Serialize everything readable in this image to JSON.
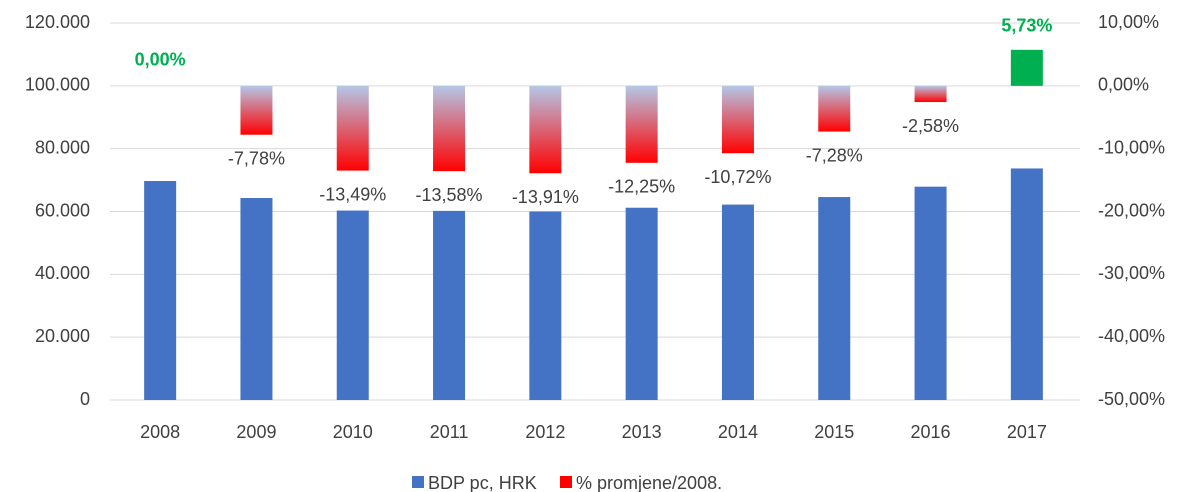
{
  "chart_data": {
    "type": "bar",
    "categories": [
      "2008",
      "2009",
      "2010",
      "2011",
      "2012",
      "2013",
      "2014",
      "2015",
      "2016",
      "2017"
    ],
    "series": [
      {
        "name": "BDP pc, HRK",
        "color": "#4472c4",
        "values": [
          69700,
          64300,
          60300,
          60200,
          60000,
          61200,
          62200,
          64600,
          67900,
          73700
        ]
      },
      {
        "name": "% promjene/2008.",
        "color": "#ff0000",
        "axis": "y2",
        "gradient_from": "#b4c7e7",
        "positive_color": "#00b050",
        "values": [
          0,
          -7.78,
          -13.49,
          -13.58,
          -13.91,
          -12.25,
          -10.72,
          -7.28,
          -2.58,
          5.73
        ],
        "value_labels": [
          "0,00%",
          "-7,78%",
          "-13,49%",
          "-13,58%",
          "-13,91%",
          "-12,25%",
          "-10,72%",
          "-7,28%",
          "-2,58%",
          "5,73%"
        ]
      }
    ],
    "ylim": [
      0,
      120000
    ],
    "yticks": [
      {
        "value": 0,
        "label": "0"
      },
      {
        "value": 20000,
        "label": "20.000"
      },
      {
        "value": 40000,
        "label": "40.000"
      },
      {
        "value": 60000,
        "label": "60.000"
      },
      {
        "value": 80000,
        "label": "80.000"
      },
      {
        "value": 100000,
        "label": "100.000"
      },
      {
        "value": 120000,
        "label": "120.000"
      }
    ],
    "y2lim": [
      -50,
      10
    ],
    "y2ticks": [
      {
        "value": -50,
        "label": "-50,00%"
      },
      {
        "value": -40,
        "label": "-40,00%"
      },
      {
        "value": -30,
        "label": "-30,00%"
      },
      {
        "value": -20,
        "label": "-20,00%"
      },
      {
        "value": -10,
        "label": "-10,00%"
      },
      {
        "value": 0,
        "label": "0,00%"
      },
      {
        "value": 10,
        "label": "10,00%"
      }
    ],
    "grid": true
  }
}
